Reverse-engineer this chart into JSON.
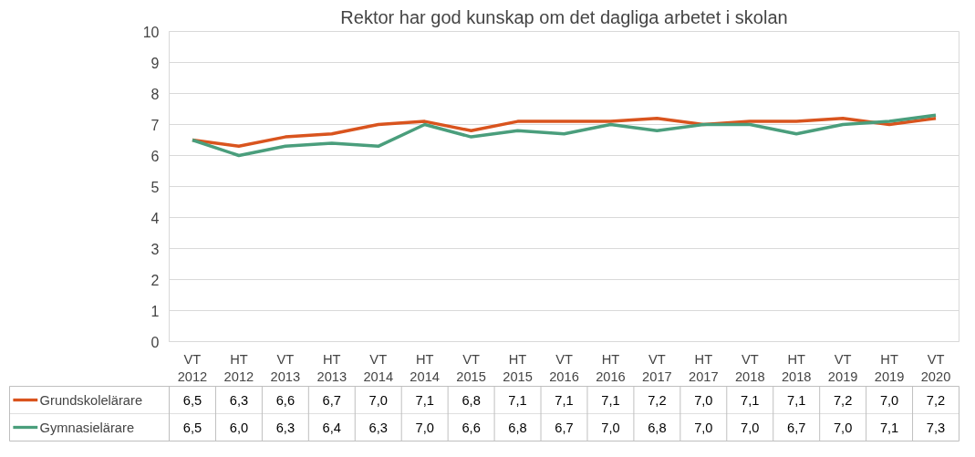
{
  "chart_data": {
    "type": "line",
    "title": "Rektor har god kunskap om det dagliga arbetet i skolan",
    "categories": [
      "VT 2012",
      "HT 2012",
      "VT 2013",
      "HT 2013",
      "VT 2014",
      "HT 2014",
      "VT 2015",
      "HT 2015",
      "VT 2016",
      "HT 2016",
      "VT 2017",
      "HT 2017",
      "VT 2018",
      "HT 2018",
      "VT 2019",
      "HT 2019",
      "VT 2020"
    ],
    "series": [
      {
        "name": "Grundskolelärare",
        "color": "#d9541e",
        "values": [
          6.5,
          6.3,
          6.6,
          6.7,
          7.0,
          7.1,
          6.8,
          7.1,
          7.1,
          7.1,
          7.2,
          7.0,
          7.1,
          7.1,
          7.2,
          7.0,
          7.2
        ],
        "value_labels": [
          "6,5",
          "6,3",
          "6,6",
          "6,7",
          "7,0",
          "7,1",
          "6,8",
          "7,1",
          "7,1",
          "7,1",
          "7,2",
          "7,0",
          "7,1",
          "7,1",
          "7,2",
          "7,0",
          "7,2"
        ]
      },
      {
        "name": "Gymnasielärare",
        "color": "#4a9e7c",
        "values": [
          6.5,
          6.0,
          6.3,
          6.4,
          6.3,
          7.0,
          6.6,
          6.8,
          6.7,
          7.0,
          6.8,
          7.0,
          7.0,
          6.7,
          7.0,
          7.1,
          7.3
        ],
        "value_labels": [
          "6,5",
          "6,0",
          "6,3",
          "6,4",
          "6,3",
          "7,0",
          "6,6",
          "6,8",
          "6,7",
          "7,0",
          "6,8",
          "7,0",
          "7,0",
          "6,7",
          "7,0",
          "7,1",
          "7,3"
        ]
      }
    ],
    "ylim": [
      0,
      10
    ],
    "yticks": [
      0,
      1,
      2,
      3,
      4,
      5,
      6,
      7,
      8,
      9,
      10
    ],
    "grid": "y",
    "legend": "bottom",
    "line_style": "solid",
    "marker": "none"
  }
}
